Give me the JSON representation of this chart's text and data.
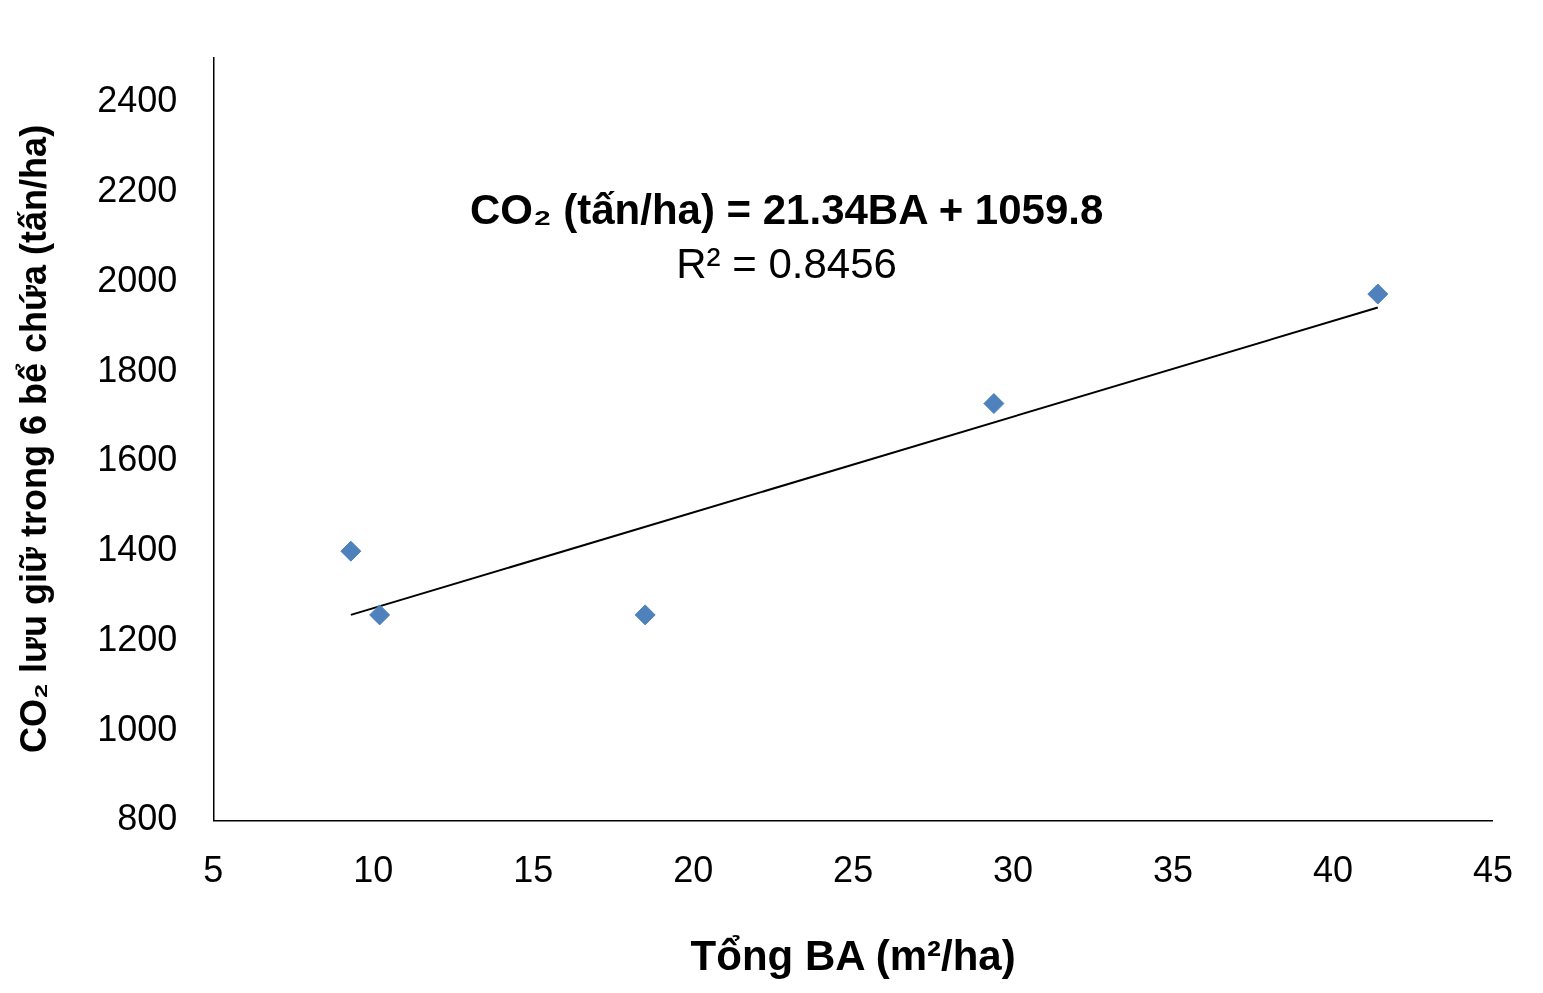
{
  "chart_data": {
    "type": "scatter",
    "xlabel": "Tổng BA (m²/ha)",
    "ylabel": "CO₂ lưu giữ trong 6 bể chứa (tấn/ha)",
    "annotations": [
      "CO₂ (tấn/ha) = 21.34BA + 1059.8",
      "R² = 0.8456"
    ],
    "series": [
      {
        "color": "#4f81bd",
        "x": [
          9.3,
          10.2,
          18.5,
          29.4,
          41.4
        ],
        "values": [
          1400,
          1258,
          1258,
          1729,
          1973
        ]
      },
      {
        "type": "line",
        "marker": "none",
        "color": "#000000",
        "x": [
          9.3,
          41.4
        ],
        "values": [
          1258,
          1943
        ]
      }
    ],
    "xlim": [
      5,
      45
    ],
    "xticks": [
      5,
      10,
      15,
      20,
      25,
      30,
      35,
      40,
      45
    ],
    "ylim": [
      800,
      2500
    ],
    "yticks": [
      800,
      1000,
      1200,
      1400,
      1600,
      1800,
      2000,
      2200,
      2400
    ],
    "grid": false,
    "legend": false,
    "marker": "diamond"
  }
}
